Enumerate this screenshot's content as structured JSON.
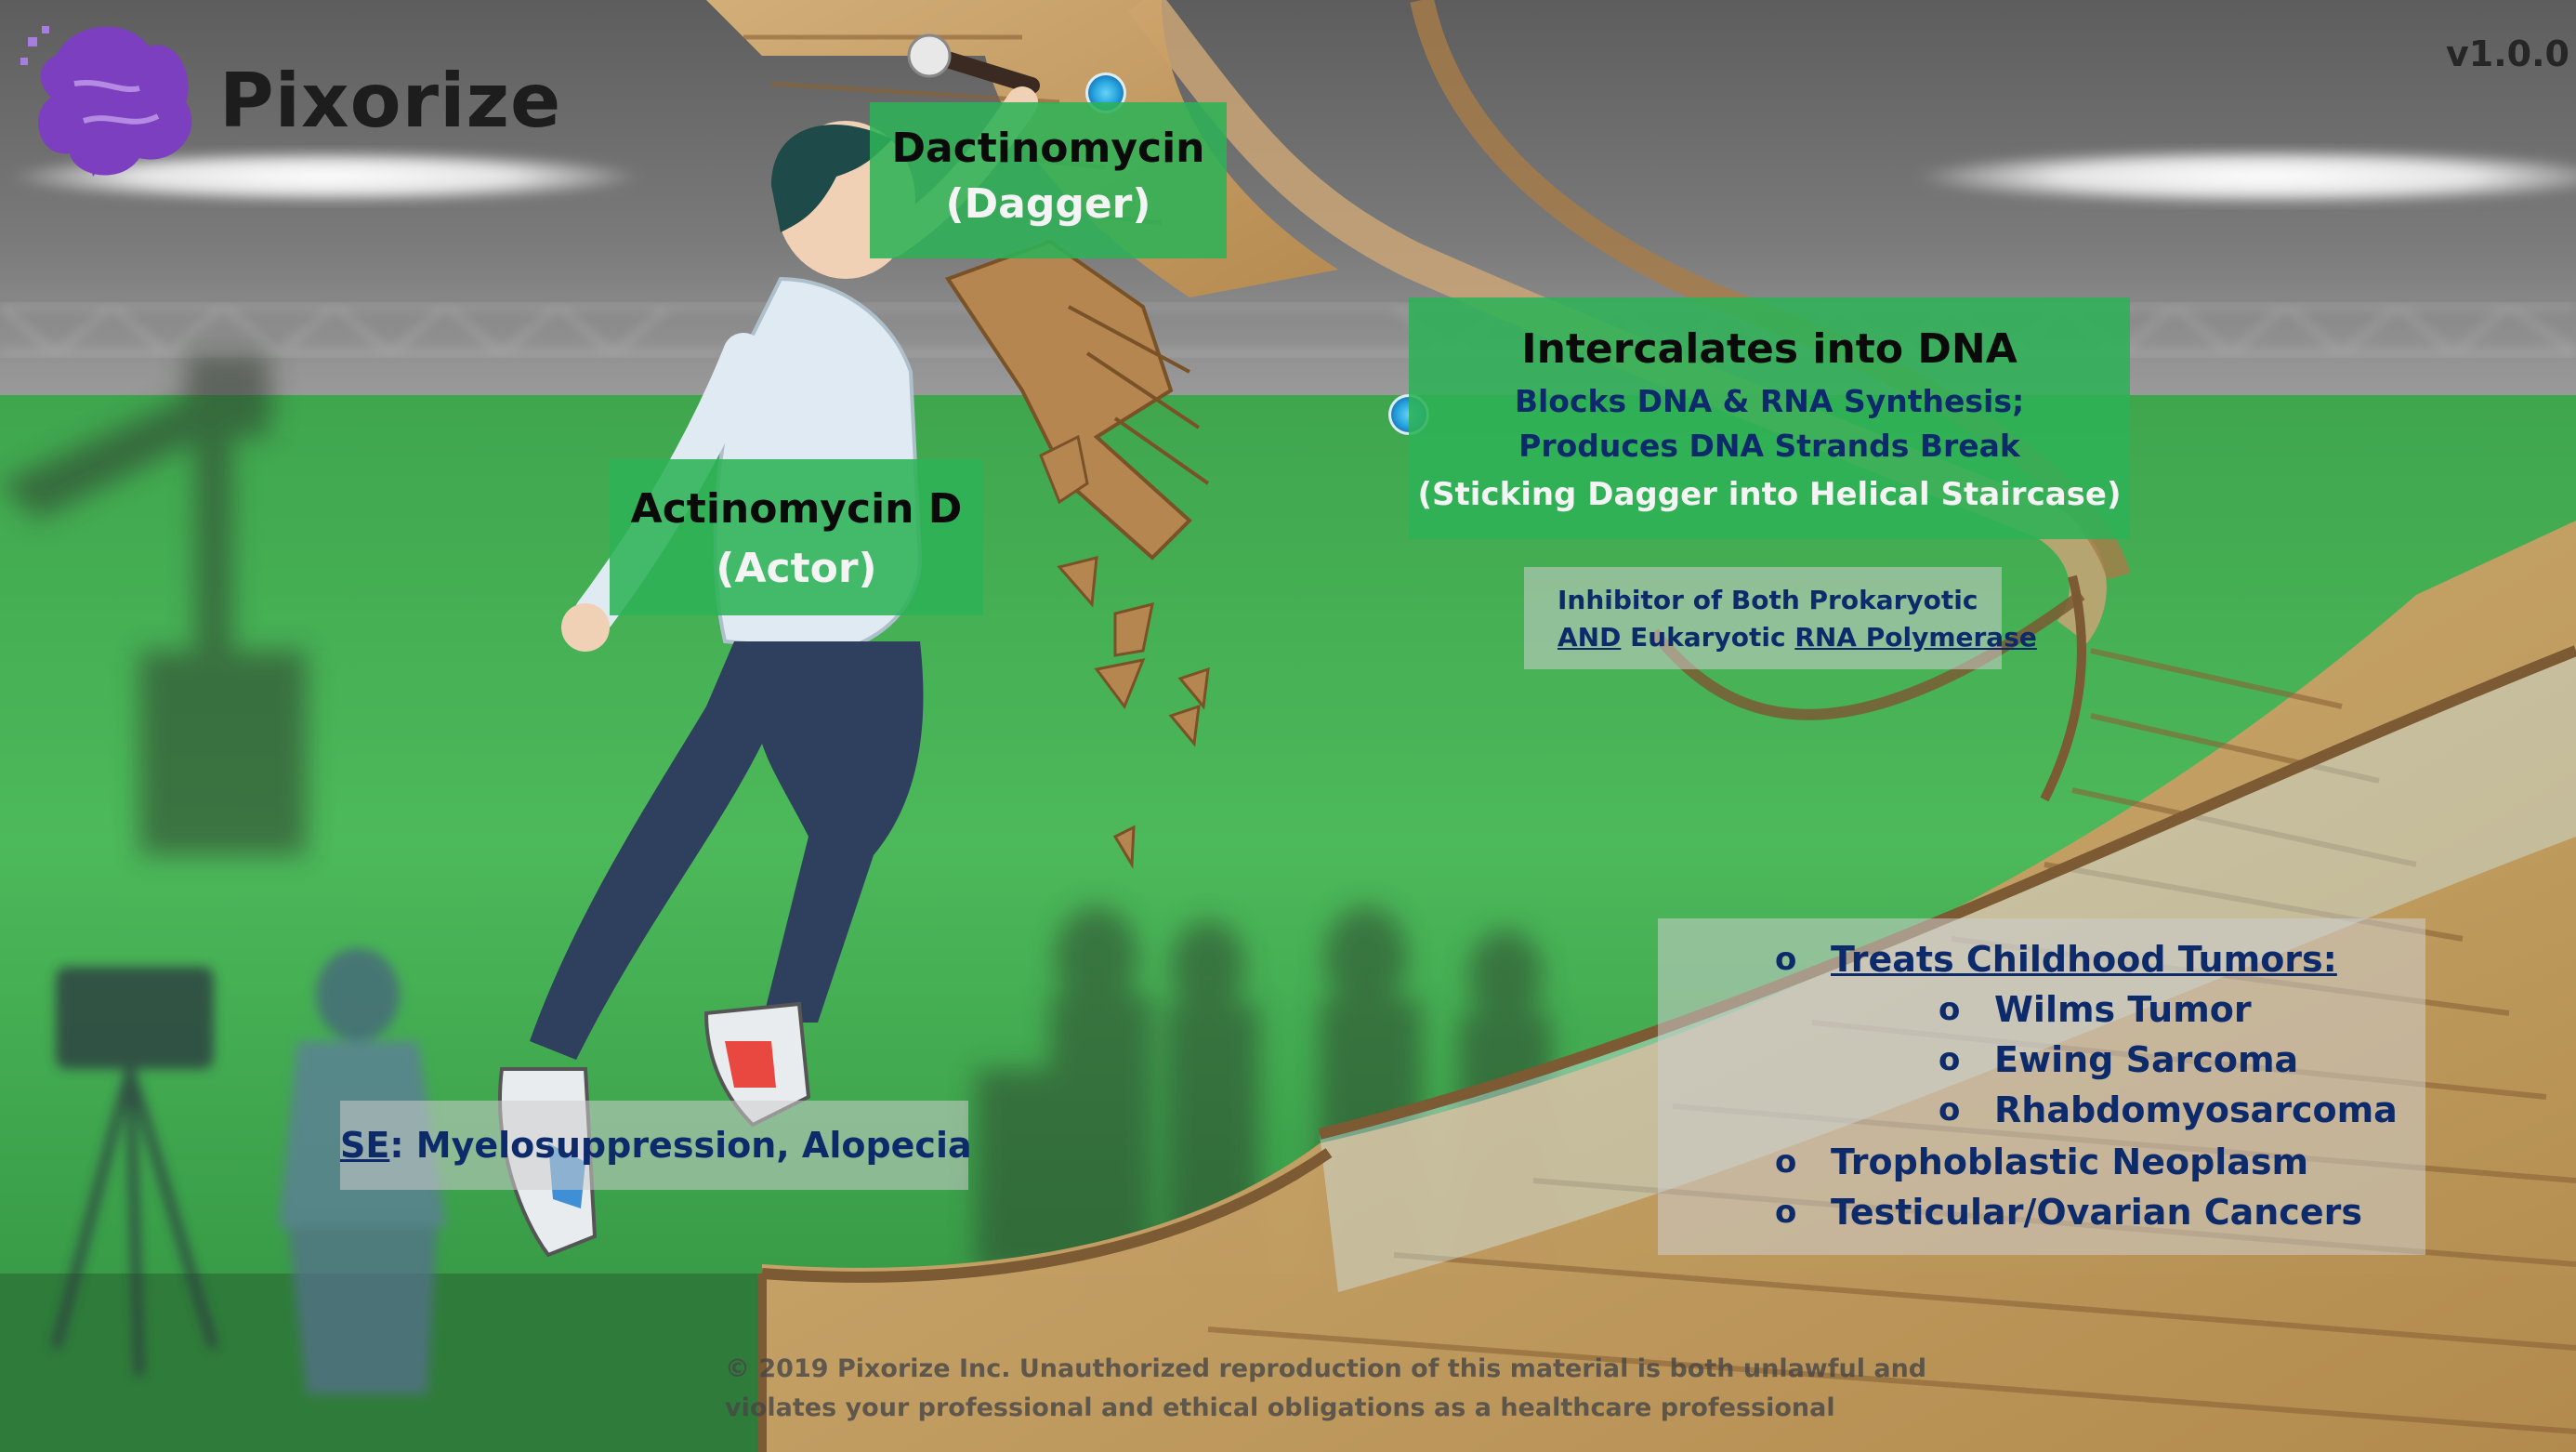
{
  "brand": {
    "name": "Pixorize",
    "version": "v1.0.0"
  },
  "labels": {
    "dactinomycin": {
      "name": "Dactinomycin",
      "mnemonic": "(Dagger)"
    },
    "actinomycin": {
      "name": "Actinomycin D",
      "mnemonic": "(Actor)"
    },
    "mechanism": {
      "title": "Intercalates into DNA",
      "line1": "Blocks DNA & RNA Synthesis;",
      "line2": "Produces DNA Strands Break",
      "mnemonic": "(Sticking Dagger into Helical Staircase)"
    },
    "inhibitor": {
      "line1": "Inhibitor of Both Prokaryotic",
      "and": "AND",
      "eukaryotic": " Eukaryotic ",
      "rna_polymerase": "RNA Polymerase"
    },
    "side_effects": {
      "abbr": "SE",
      "text": ": Myelosuppression, Alopecia"
    },
    "uses": {
      "header": "Treats Childhood Tumors:",
      "sub": [
        "Wilms Tumor",
        "Ewing Sarcoma",
        "Rhabdomyosarcoma"
      ],
      "other": [
        "Trophoblastic Neoplasm",
        "Testicular/Ovarian Cancers"
      ],
      "bullet_glyph": "o"
    }
  },
  "copyright": {
    "line1": "© 2019 Pixorize Inc. Unauthorized reproduction of this material is both unlawful and",
    "line2": "violates your professional and ethical obligations as a healthcare professional"
  },
  "colors": {
    "label_green": "#2eb256",
    "navy_text": "#0d2a6b",
    "logo_purple": "#7b3fbf",
    "marker_blue": "#2aa7e0"
  }
}
